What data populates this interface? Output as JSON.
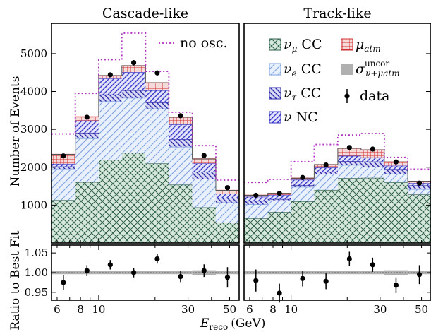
{
  "chart_data": {
    "type": "bar",
    "stacked": true,
    "x_scale": "log",
    "xlabel": "E_reco (GeV)",
    "xlabel_main": "E",
    "xlabel_sub": "reco",
    "xlabel_units": "(GeV)",
    "ylabel": "Number of Events",
    "ratio_ylabel": "Ratio to Best Fit",
    "x_ticks": [
      "6",
      "8",
      "10",
      "30",
      "50"
    ],
    "y_ticks": [
      "1000",
      "2000",
      "3000",
      "4000",
      "5000"
    ],
    "ratio_ticks": [
      "1.05",
      "1.00",
      "0.95"
    ],
    "ylim": [
      0,
      5800
    ],
    "ratio_ylim": [
      0.93,
      1.07
    ],
    "bin_edges": [
      5.6,
      7.5,
      10.0,
      13.3,
      17.8,
      23.7,
      31.6,
      42.2,
      56.2
    ],
    "colors": {
      "numu_cc": "#2f5f4a",
      "nue_cc": "#7ea0e0",
      "nutau_cc": "#2a2aa8",
      "nc": "#3a3ac8",
      "mu_atm": "#d03030",
      "no_osc": "#b030c0",
      "uncor": "#b0b0b0",
      "numu_fill": "#d6e8dc",
      "nue_fill": "#e8f0fd",
      "nutau_fill": "#d8d8f5",
      "nc_fill": "#e2e2fa",
      "mu_fill": "#f6dada"
    },
    "legend": {
      "no_osc": "no osc.",
      "numu_cc": {
        "sym": "ν",
        "sub": "μ",
        "rest": " CC"
      },
      "nue_cc": {
        "sym": "ν",
        "sub": "e",
        "rest": "  CC"
      },
      "nutau_cc": {
        "sym": "ν",
        "sub": "τ",
        "rest": " CC"
      },
      "nc": {
        "sym": "ν",
        "sub": "",
        "rest": " NC"
      },
      "mu_atm": {
        "sym": "μ",
        "sub": "atm",
        "rest": ""
      },
      "uncor": {
        "sym": "σ",
        "sup": "uncor",
        "sub": "ν+μatm",
        "rest": ""
      },
      "data": "data"
    },
    "panels": [
      {
        "title": "Cascade-like",
        "numu_cc": [
          1130,
          1610,
          2200,
          2380,
          2100,
          1540,
          940,
          540
        ],
        "nue_cc": [
          830,
          1150,
          1540,
          1450,
          1450,
          1000,
          750,
          530
        ],
        "nutau_cc": [
          60,
          150,
          180,
          200,
          160,
          200,
          190,
          120
        ],
        "nc": [
          70,
          320,
          420,
          480,
          320,
          390,
          220,
          110
        ],
        "mu_atm": [
          250,
          100,
          80,
          170,
          200,
          190,
          120,
          90
        ],
        "no_osc": [
          2880,
          3950,
          4840,
          5540,
          4530,
          3450,
          2570,
          1660
        ],
        "data": [
          2300,
          3320,
          4440,
          4760,
          4490,
          3360,
          2310,
          1460
        ],
        "data_err": [
          45,
          55,
          65,
          70,
          65,
          55,
          45,
          40
        ],
        "ratio": [
          0.975,
          1.005,
          1.02,
          1.0,
          1.035,
          0.99,
          1.005,
          0.988
        ],
        "ratio_err": [
          0.018,
          0.014,
          0.012,
          0.012,
          0.012,
          0.014,
          0.016,
          0.026
        ]
      },
      {
        "title": "Track-like",
        "numu_cc": [
          650,
          820,
          1100,
          1400,
          1710,
          1720,
          1600,
          1280
        ],
        "nue_cc": [
          370,
          300,
          380,
          420,
          350,
          290,
          230,
          140
        ],
        "nutau_cc": [
          90,
          40,
          50,
          60,
          100,
          140,
          120,
          100
        ],
        "nc": [
          110,
          110,
          140,
          110,
          140,
          110,
          90,
          60
        ],
        "mu_atm": [
          40,
          40,
          40,
          80,
          200,
          200,
          100,
          50
        ],
        "no_osc": [
          1600,
          1680,
          2150,
          2600,
          2850,
          2890,
          2260,
          1950
        ],
        "data": [
          1260,
          1310,
          1730,
          2060,
          2520,
          2480,
          2140,
          1580
        ],
        "data_err": [
          35,
          36,
          41,
          45,
          50,
          50,
          46,
          40
        ],
        "ratio": [
          0.98,
          0.948,
          0.985,
          0.978,
          1.035,
          1.02,
          0.968,
          0.995
        ],
        "ratio_err": [
          0.028,
          0.024,
          0.02,
          0.02,
          0.018,
          0.018,
          0.02,
          0.024
        ]
      }
    ]
  }
}
